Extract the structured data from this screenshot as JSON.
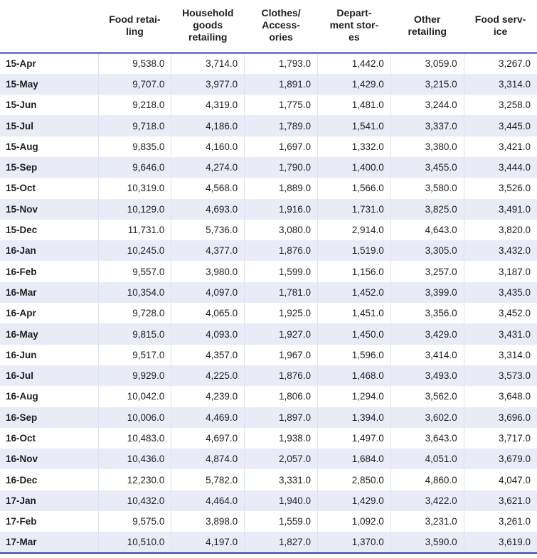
{
  "colors": {
    "header_rule": "#7680ca",
    "bottom_rule": "#39449f",
    "stripe": "#e9ebf7",
    "divider": "#dfe2f1",
    "text": "#1f1f1f"
  },
  "table": {
    "corner_label": "",
    "headers": [
      "Food retai-\nling",
      "Household\ngoods\nretailing",
      "Clothes/\nAccess-\nories",
      "Depart-\nment stor-\nes",
      "Other\nretailing",
      "Food serv-\nice"
    ],
    "rows": [
      {
        "label": "15-Apr",
        "values": [
          "9,538.0",
          "3,714.0",
          "1,793.0",
          "1,442.0",
          "3,059.0",
          "3,267.0"
        ]
      },
      {
        "label": "15-May",
        "values": [
          "9,707.0",
          "3,977.0",
          "1,891.0",
          "1,429.0",
          "3,215.0",
          "3,314.0"
        ]
      },
      {
        "label": "15-Jun",
        "values": [
          "9,218.0",
          "4,319.0",
          "1,775.0",
          "1,481.0",
          "3,244.0",
          "3,258.0"
        ]
      },
      {
        "label": "15-Jul",
        "values": [
          "9,718.0",
          "4,186.0",
          "1,789.0",
          "1,541.0",
          "3,337.0",
          "3,445.0"
        ]
      },
      {
        "label": "15-Aug",
        "values": [
          "9,835.0",
          "4,160.0",
          "1,697.0",
          "1,332.0",
          "3,380.0",
          "3,421.0"
        ]
      },
      {
        "label": "15-Sep",
        "values": [
          "9,646.0",
          "4,274.0",
          "1,790.0",
          "1,400.0",
          "3,455.0",
          "3,444.0"
        ]
      },
      {
        "label": "15-Oct",
        "values": [
          "10,319.0",
          "4,568.0",
          "1,889.0",
          "1,566.0",
          "3,580.0",
          "3,526.0"
        ]
      },
      {
        "label": "15-Nov",
        "values": [
          "10,129.0",
          "4,693.0",
          "1,916.0",
          "1,731.0",
          "3,825.0",
          "3,491.0"
        ]
      },
      {
        "label": "15-Dec",
        "values": [
          "11,731.0",
          "5,736.0",
          "3,080.0",
          "2,914.0",
          "4,643.0",
          "3,820.0"
        ]
      },
      {
        "label": "16-Jan",
        "values": [
          "10,245.0",
          "4,377.0",
          "1,876.0",
          "1,519.0",
          "3,305.0",
          "3,432.0"
        ]
      },
      {
        "label": "16-Feb",
        "values": [
          "9,557.0",
          "3,980.0",
          "1,599.0",
          "1,156.0",
          "3,257.0",
          "3,187.0"
        ]
      },
      {
        "label": "16-Mar",
        "values": [
          "10,354.0",
          "4,097.0",
          "1,781.0",
          "1,452.0",
          "3,399.0",
          "3,435.0"
        ]
      },
      {
        "label": "16-Apr",
        "values": [
          "9,728.0",
          "4,065.0",
          "1,925.0",
          "1,451.0",
          "3,356.0",
          "3,452.0"
        ]
      },
      {
        "label": "16-May",
        "values": [
          "9,815.0",
          "4,093.0",
          "1,927.0",
          "1,450.0",
          "3,429.0",
          "3,431.0"
        ]
      },
      {
        "label": "16-Jun",
        "values": [
          "9,517.0",
          "4,357.0",
          "1,967.0",
          "1,596.0",
          "3,414.0",
          "3,314.0"
        ]
      },
      {
        "label": "16-Jul",
        "values": [
          "9,929.0",
          "4,225.0",
          "1,876.0",
          "1,468.0",
          "3,493.0",
          "3,573.0"
        ]
      },
      {
        "label": "16-Aug",
        "values": [
          "10,042.0",
          "4,239.0",
          "1,806.0",
          "1,294.0",
          "3,562.0",
          "3,648.0"
        ]
      },
      {
        "label": "16-Sep",
        "values": [
          "10,006.0",
          "4,469.0",
          "1,897.0",
          "1,394.0",
          "3,602.0",
          "3,696.0"
        ]
      },
      {
        "label": "16-Oct",
        "values": [
          "10,483.0",
          "4,697.0",
          "1,938.0",
          "1,497.0",
          "3,643.0",
          "3,717.0"
        ]
      },
      {
        "label": "16-Nov",
        "values": [
          "10,436.0",
          "4,874.0",
          "2,057.0",
          "1,684.0",
          "4,051.0",
          "3,679.0"
        ]
      },
      {
        "label": "16-Dec",
        "values": [
          "12,230.0",
          "5,782.0",
          "3,331.0",
          "2,850.0",
          "4,860.0",
          "4,047.0"
        ]
      },
      {
        "label": "17-Jan",
        "values": [
          "10,432.0",
          "4,464.0",
          "1,940.0",
          "1,429.0",
          "3,422.0",
          "3,621.0"
        ]
      },
      {
        "label": "17-Feb",
        "values": [
          "9,575.0",
          "3,898.0",
          "1,559.0",
          "1,092.0",
          "3,231.0",
          "3,261.0"
        ]
      },
      {
        "label": "17-Mar",
        "values": [
          "10,510.0",
          "4,197.0",
          "1,827.0",
          "1,370.0",
          "3,590.0",
          "3,619.0"
        ]
      }
    ]
  },
  "chart_data": {
    "type": "table",
    "title": "",
    "categories": [
      "15-Apr",
      "15-May",
      "15-Jun",
      "15-Jul",
      "15-Aug",
      "15-Sep",
      "15-Oct",
      "15-Nov",
      "15-Dec",
      "16-Jan",
      "16-Feb",
      "16-Mar",
      "16-Apr",
      "16-May",
      "16-Jun",
      "16-Jul",
      "16-Aug",
      "16-Sep",
      "16-Oct",
      "16-Nov",
      "16-Dec",
      "17-Jan",
      "17-Feb",
      "17-Mar"
    ],
    "series": [
      {
        "name": "Food retailing",
        "values": [
          9538.0,
          9707.0,
          9218.0,
          9718.0,
          9835.0,
          9646.0,
          10319.0,
          10129.0,
          11731.0,
          10245.0,
          9557.0,
          10354.0,
          9728.0,
          9815.0,
          9517.0,
          9929.0,
          10042.0,
          10006.0,
          10483.0,
          10436.0,
          12230.0,
          10432.0,
          9575.0,
          10510.0
        ]
      },
      {
        "name": "Household goods retailing",
        "values": [
          3714.0,
          3977.0,
          4319.0,
          4186.0,
          4160.0,
          4274.0,
          4568.0,
          4693.0,
          5736.0,
          4377.0,
          3980.0,
          4097.0,
          4065.0,
          4093.0,
          4357.0,
          4225.0,
          4239.0,
          4469.0,
          4697.0,
          4874.0,
          5782.0,
          4464.0,
          3898.0,
          4197.0
        ]
      },
      {
        "name": "Clothes/Accessories",
        "values": [
          1793.0,
          1891.0,
          1775.0,
          1789.0,
          1697.0,
          1790.0,
          1889.0,
          1916.0,
          3080.0,
          1876.0,
          1599.0,
          1781.0,
          1925.0,
          1927.0,
          1967.0,
          1876.0,
          1806.0,
          1897.0,
          1938.0,
          2057.0,
          3331.0,
          1940.0,
          1559.0,
          1827.0
        ]
      },
      {
        "name": "Department stores",
        "values": [
          1442.0,
          1429.0,
          1481.0,
          1541.0,
          1332.0,
          1400.0,
          1566.0,
          1731.0,
          2914.0,
          1519.0,
          1156.0,
          1452.0,
          1451.0,
          1450.0,
          1596.0,
          1468.0,
          1294.0,
          1394.0,
          1497.0,
          1684.0,
          2850.0,
          1429.0,
          1092.0,
          1370.0
        ]
      },
      {
        "name": "Other retailing",
        "values": [
          3059.0,
          3215.0,
          3244.0,
          3337.0,
          3380.0,
          3455.0,
          3580.0,
          3825.0,
          4643.0,
          3305.0,
          3257.0,
          3399.0,
          3356.0,
          3429.0,
          3414.0,
          3493.0,
          3562.0,
          3602.0,
          3643.0,
          4051.0,
          4860.0,
          3422.0,
          3231.0,
          3590.0
        ]
      },
      {
        "name": "Food service",
        "values": [
          3267.0,
          3314.0,
          3258.0,
          3445.0,
          3421.0,
          3444.0,
          3526.0,
          3491.0,
          3820.0,
          3432.0,
          3187.0,
          3435.0,
          3452.0,
          3431.0,
          3314.0,
          3573.0,
          3648.0,
          3696.0,
          3717.0,
          3679.0,
          4047.0,
          3621.0,
          3261.0,
          3619.0
        ]
      }
    ],
    "layout": {
      "row_striping": true,
      "grid": "vertical-only",
      "legend_position": "none"
    }
  }
}
